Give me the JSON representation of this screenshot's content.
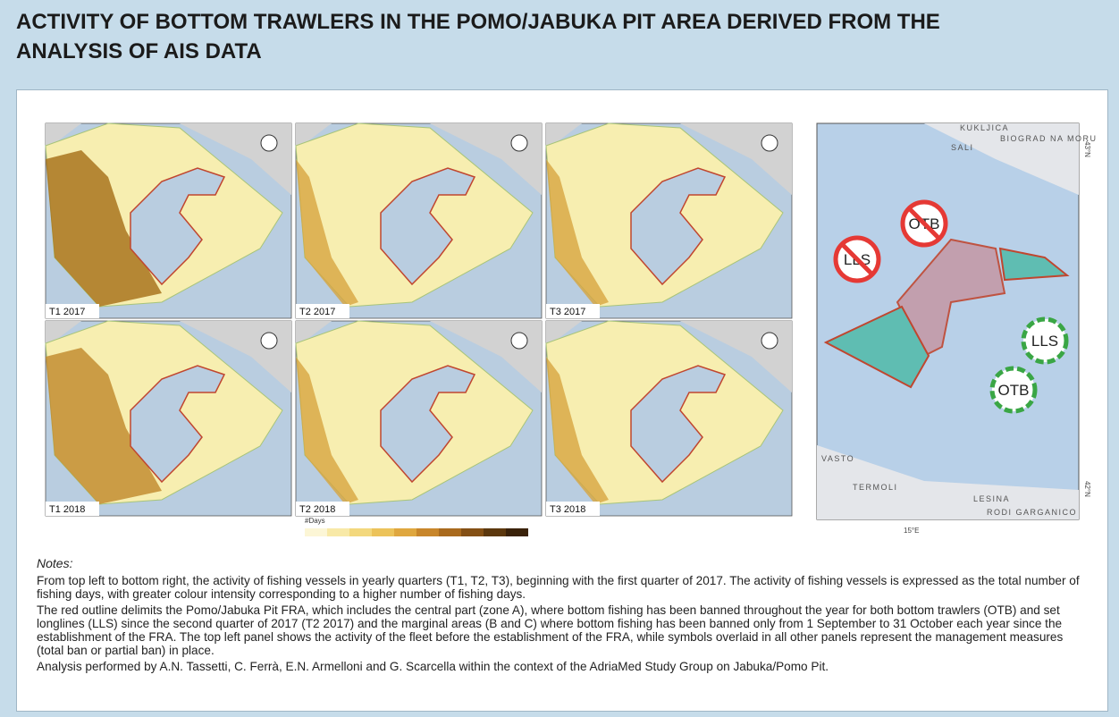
{
  "header": {
    "title": "ACTIVITY OF BOTTOM TRAWLERS IN THE POMO/JABUKA PIT AREA DERIVED FROM THE ANALYSIS OF AIS DATA"
  },
  "panels": [
    {
      "label": "T1 2017"
    },
    {
      "label": "T2 2017"
    },
    {
      "label": "T3 2017"
    },
    {
      "label": "T1 2018"
    },
    {
      "label": "T2 2018"
    },
    {
      "label": "T3 2018"
    }
  ],
  "legend": {
    "title": "#Days"
  },
  "overview_map": {
    "symbols": [
      "LLS",
      "OTB",
      "LLS",
      "OTB"
    ],
    "places": [
      "KUKLJICA",
      "SALI",
      "BIOGRAD NA MORU",
      "VASTO",
      "TERMOLI",
      "LESINA",
      "RODI GARGANICO"
    ],
    "axis": [
      "15°E",
      "43°N",
      "42°N"
    ]
  },
  "notes": {
    "heading": "Notes:",
    "paragraphs": [
      "From top left to bottom right, the activity of fishing vessels in yearly quarters (T1, T2, T3), beginning with the first quarter of 2017. The activity of fishing vessels is expressed as the total number of fishing days, with greater colour intensity corresponding to a higher number of fishing days.",
      "The red outline delimits the Pomo/Jabuka Pit FRA, which includes the central part (zone A), where bottom fishing has been banned throughout the year for both bottom trawlers (OTB) and set longlines (LLS) since the second quarter of 2017 (T2 2017) and the marginal areas (B and C) where bottom fishing has been banned only from 1 September to 31 October each year since the establishment of the FRA. The top left panel shows the activity of the fleet before the establishment of the FRA, while symbols overlaid in all other panels represent the management measures (total ban or partial ban) in place.",
      "Analysis performed by A.N. Tassetti, C. Ferrà, E.N. Armelloni and G. Scarcella within the context of the AdriaMed Study Group on Jabuka/Pomo Pit."
    ]
  }
}
